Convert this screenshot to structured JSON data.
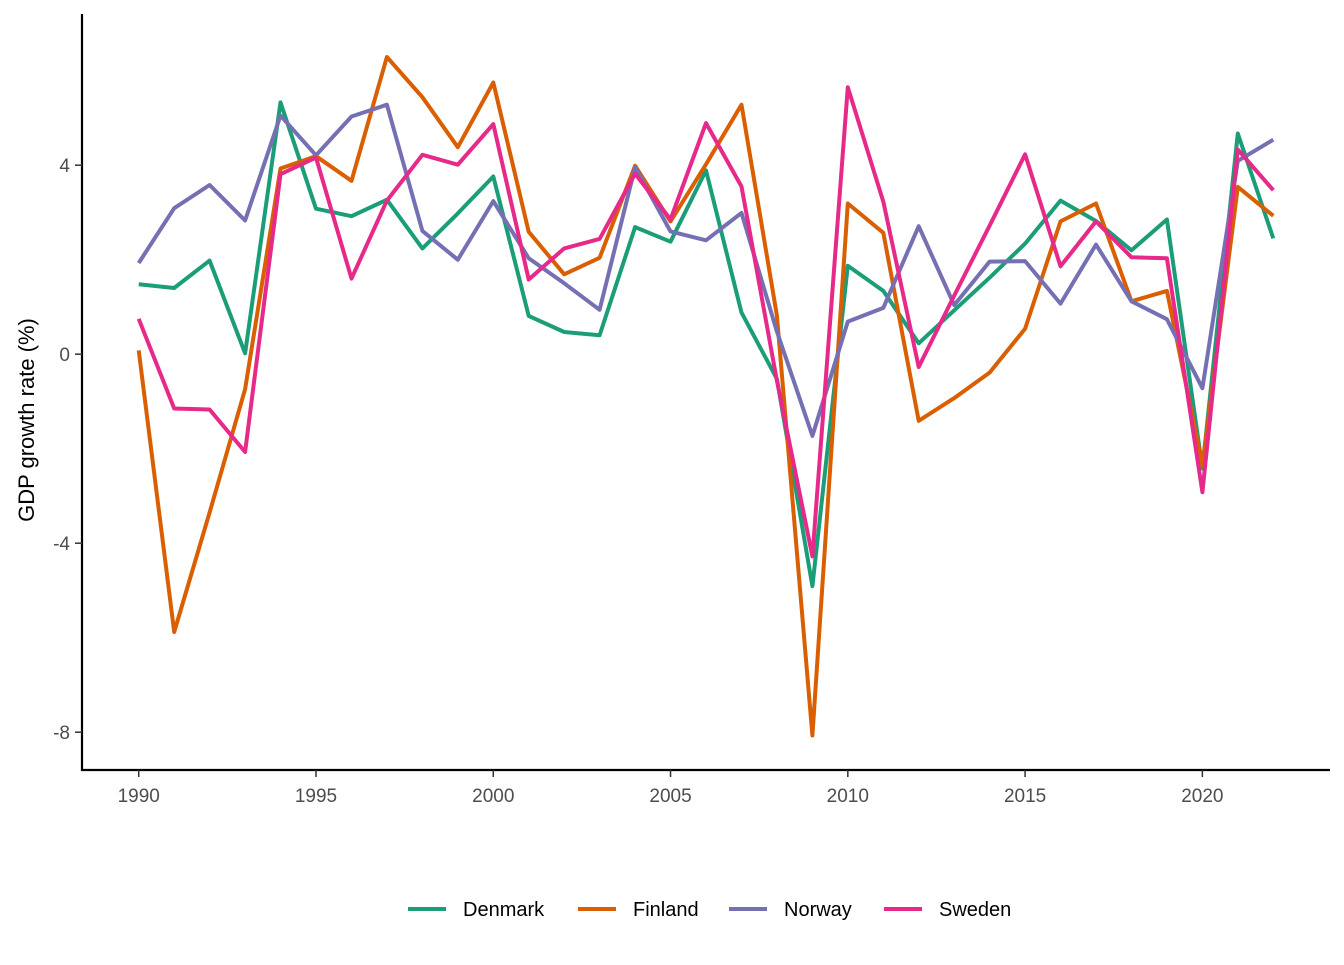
{
  "chart_data": {
    "type": "line",
    "title": "",
    "xlabel": "",
    "ylabel": "GDP growth rate (%)",
    "xlim": [
      1988.4,
      2023.6
    ],
    "ylim": [
      -8.8,
      7.2
    ],
    "x_ticks": [
      1990,
      1995,
      2000,
      2005,
      2010,
      2015,
      2020
    ],
    "y_ticks": [
      -8,
      -4,
      0,
      4
    ],
    "y_tick_labels": [
      "-8",
      "-4",
      "0",
      "4"
    ],
    "grid": false,
    "legend_position": "bottom",
    "x": [
      1990,
      1991,
      1992,
      1993,
      1994,
      1995,
      1996,
      1997,
      1998,
      1999,
      2000,
      2001,
      2002,
      2003,
      2004,
      2005,
      2006,
      2007,
      2008,
      2009,
      2010,
      2011,
      2012,
      2013,
      2014,
      2015,
      2016,
      2017,
      2018,
      2019,
      2020,
      2021,
      2022
    ],
    "series": [
      {
        "name": "Denmark",
        "color": "#1B9E77",
        "values": [
          1.48,
          1.4,
          1.98,
          0.02,
          5.33,
          3.08,
          2.92,
          3.27,
          2.24,
          2.98,
          3.76,
          0.81,
          0.47,
          0.4,
          2.69,
          2.38,
          3.89,
          0.88,
          -0.52,
          -4.91,
          1.87,
          1.34,
          0.23,
          0.93,
          1.62,
          2.34,
          3.25,
          2.82,
          2.2,
          2.85,
          -2.42,
          4.67,
          2.45
        ]
      },
      {
        "name": "Finland",
        "color": "#D95F02",
        "values": [
          0.08,
          -5.88,
          -3.35,
          -0.74,
          3.93,
          4.19,
          3.67,
          6.29,
          5.44,
          4.38,
          5.75,
          2.59,
          1.69,
          2.04,
          3.99,
          2.81,
          4.02,
          5.28,
          0.82,
          -8.07,
          3.19,
          2.57,
          -1.41,
          -0.93,
          -0.39,
          0.54,
          2.81,
          3.19,
          1.12,
          1.34,
          -2.35,
          3.54,
          2.93
        ]
      },
      {
        "name": "Norway",
        "color": "#7570B3",
        "values": [
          1.93,
          3.09,
          3.58,
          2.83,
          5.05,
          4.21,
          5.03,
          5.28,
          2.61,
          2.0,
          3.24,
          2.03,
          1.5,
          0.94,
          3.96,
          2.6,
          2.41,
          2.99,
          0.48,
          -1.73,
          0.69,
          0.98,
          2.71,
          1.04,
          1.96,
          1.97,
          1.07,
          2.32,
          1.12,
          0.74,
          -0.72,
          4.09,
          4.54
        ]
      },
      {
        "name": "Sweden",
        "color": "#E7298A",
        "values": [
          0.75,
          -1.15,
          -1.17,
          -2.07,
          3.81,
          4.16,
          1.6,
          3.25,
          4.22,
          4.01,
          4.87,
          1.58,
          2.24,
          2.44,
          3.82,
          2.85,
          4.89,
          3.55,
          -0.56,
          -4.28,
          5.65,
          3.23,
          -0.27,
          1.24,
          2.72,
          4.23,
          1.86,
          2.81,
          2.05,
          2.03,
          -2.92,
          4.33,
          3.47
        ]
      }
    ]
  }
}
